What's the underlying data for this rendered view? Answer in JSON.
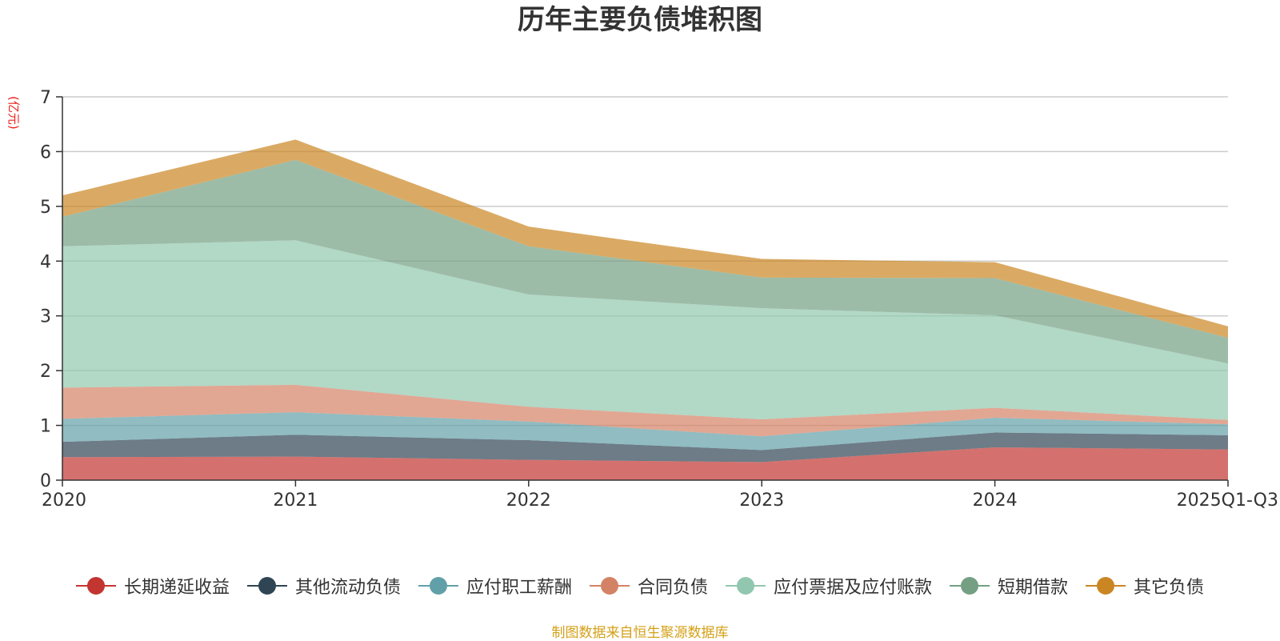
{
  "chart_data": {
    "type": "area",
    "stacked": true,
    "title": "历年主要负债堆积图",
    "ylabel": "(亿元)",
    "xlabel": "",
    "categories": [
      "2020",
      "2021",
      "2022",
      "2023",
      "2024",
      "2025Q1-Q3"
    ],
    "ylim": [
      0,
      7
    ],
    "yticks": [
      0,
      1,
      2,
      3,
      4,
      5,
      6,
      7
    ],
    "grid": true,
    "legend_position": "bottom",
    "series": [
      {
        "name": "长期递延收益",
        "color": "#c23531",
        "values": [
          0.42,
          0.43,
          0.37,
          0.33,
          0.6,
          0.56
        ]
      },
      {
        "name": "其他流动负债",
        "color": "#2f4554",
        "values": [
          0.28,
          0.4,
          0.36,
          0.22,
          0.27,
          0.26
        ]
      },
      {
        "name": "应付职工薪酬",
        "color": "#61a0a8",
        "values": [
          0.42,
          0.41,
          0.34,
          0.25,
          0.27,
          0.2
        ]
      },
      {
        "name": "合同负债",
        "color": "#d48265",
        "values": [
          0.57,
          0.5,
          0.27,
          0.31,
          0.18,
          0.08
        ]
      },
      {
        "name": "应付票据及应付账款",
        "color": "#91c7ae",
        "values": [
          2.58,
          2.64,
          2.05,
          2.03,
          1.69,
          1.03
        ]
      },
      {
        "name": "短期借款",
        "color": "#749f83",
        "values": [
          0.54,
          1.47,
          0.88,
          0.56,
          0.68,
          0.47
        ]
      },
      {
        "name": "其它负债",
        "color": "#ca8622",
        "values": [
          0.39,
          0.37,
          0.36,
          0.34,
          0.29,
          0.21
        ]
      }
    ]
  },
  "footer": {
    "source": "制图数据来自恒生聚源数据库"
  }
}
